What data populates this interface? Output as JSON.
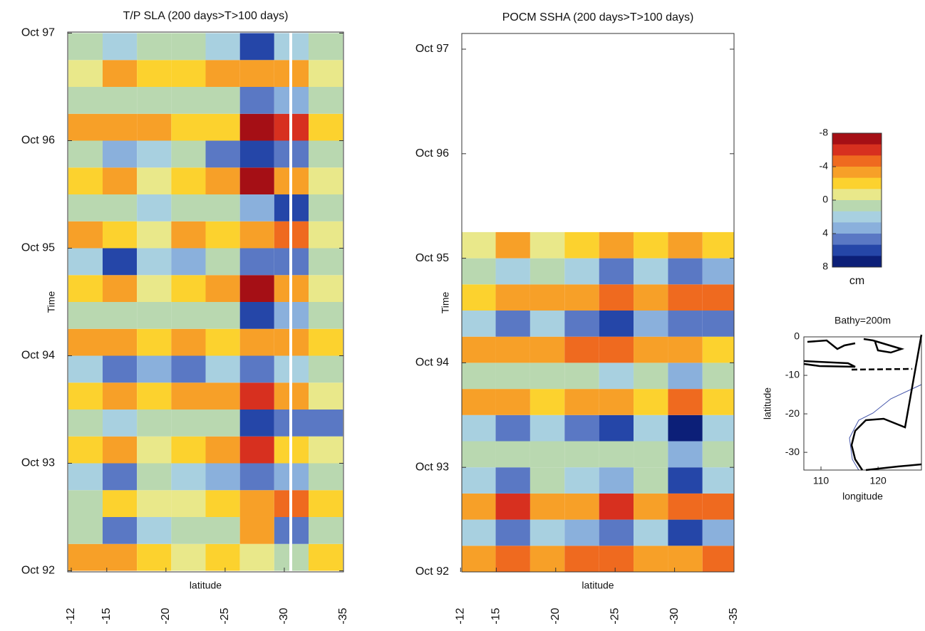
{
  "chart_data": [
    {
      "type": "heatmap",
      "title": "T/P SLA (200 days>T>100 days)",
      "xlabel": "latitude",
      "ylabel": "Time",
      "xlim": [
        -11.7,
        -35
      ],
      "xticks": [
        -12,
        -15,
        -20,
        -25,
        -30,
        -35
      ],
      "ylim": [
        1992.74,
        1997.76
      ],
      "yticks": [
        {
          "value": 1992.75,
          "label": "Oct 92"
        },
        {
          "value": 1993.75,
          "label": "Oct 93"
        },
        {
          "value": 1994.75,
          "label": "Oct 94"
        },
        {
          "value": 1995.75,
          "label": "Oct 95"
        },
        {
          "value": 1996.75,
          "label": "Oct 96"
        },
        {
          "value": 1997.75,
          "label": "Oct 97"
        }
      ],
      "x": [
        -13.2,
        -16.1,
        -19.0,
        -21.9,
        -24.8,
        -27.7,
        -30.6,
        -33.5
      ],
      "y": [
        1992.875,
        1993.125,
        1993.375,
        1993.625,
        1993.875,
        1994.125,
        1994.375,
        1994.625,
        1994.875,
        1995.125,
        1995.375,
        1995.625,
        1995.875,
        1996.125,
        1996.375,
        1996.625,
        1996.875,
        1997.125,
        1997.375,
        1997.625
      ],
      "values": [
        [
          -3,
          -4,
          -2,
          -1,
          -2,
          -1,
          1,
          -2
        ],
        [
          1,
          4,
          2,
          1,
          1,
          -3,
          5,
          1
        ],
        [
          0,
          -2,
          -1,
          -1,
          -2,
          -4,
          -5,
          -2
        ],
        [
          2,
          4,
          1,
          2,
          3,
          5,
          3,
          0
        ],
        [
          -2,
          -3,
          -1,
          -2,
          -3,
          -6,
          -2,
          -1
        ],
        [
          1,
          2,
          1,
          1,
          1,
          6,
          4,
          5
        ],
        [
          -2,
          -3,
          -2,
          -4,
          -3,
          -6,
          -3,
          -1
        ],
        [
          2,
          4,
          3,
          5,
          2,
          5,
          2,
          1
        ],
        [
          -3,
          -3,
          -2,
          -4,
          -2,
          -4,
          -3,
          -2
        ],
        [
          0,
          1,
          0,
          1,
          1,
          6,
          3,
          1
        ],
        [
          -2,
          -4,
          -1,
          -2,
          -4,
          -7,
          -3,
          -1
        ],
        [
          2,
          6,
          2,
          3,
          1,
          4,
          5,
          1
        ],
        [
          -3,
          -2,
          -1,
          -4,
          -2,
          -3,
          -5,
          -1
        ],
        [
          0,
          1,
          2,
          1,
          1,
          3,
          6,
          0
        ],
        [
          -2,
          -3,
          -1,
          -2,
          -3,
          -7,
          -4,
          -1
        ],
        [
          1,
          3,
          2,
          1,
          4,
          6,
          5,
          1
        ],
        [
          -3,
          -4,
          -3,
          -2,
          -2,
          -8,
          -6,
          -2
        ],
        [
          0,
          1,
          0,
          1,
          1,
          5,
          3,
          1
        ],
        [
          -1,
          -3,
          -2,
          -2,
          -3,
          -4,
          -4,
          -1
        ],
        [
          1,
          2,
          0,
          1,
          2,
          6,
          2,
          0
        ]
      ]
    },
    {
      "type": "heatmap",
      "title": "POCM SSHA (200 days>T>100 days)",
      "xlabel": "latitude",
      "ylabel": "Time",
      "xlim": [
        -12.1,
        -35
      ],
      "xticks": [
        -12,
        -15,
        -20,
        -25,
        -30,
        -35
      ],
      "ylim": [
        1992.75,
        1997.9
      ],
      "yticks": [
        {
          "value": 1992.75,
          "label": "Oct 92"
        },
        {
          "value": 1993.75,
          "label": "Oct 93"
        },
        {
          "value": 1994.75,
          "label": "Oct 94"
        },
        {
          "value": 1995.75,
          "label": "Oct 95"
        },
        {
          "value": 1996.75,
          "label": "Oct 96"
        },
        {
          "value": 1997.75,
          "label": "Oct 97"
        }
      ],
      "x": [
        -13.5,
        -16.4,
        -19.3,
        -22.2,
        -25.1,
        -28.0,
        -30.9,
        -33.8
      ],
      "y": [
        1992.875,
        1993.125,
        1993.375,
        1993.625,
        1993.875,
        1994.125,
        1994.375,
        1994.625,
        1994.875,
        1995.125,
        1995.375,
        1995.625,
        1995.875
      ],
      "values": [
        [
          -4,
          -5,
          -4,
          -5,
          -5,
          -4,
          -4,
          -5
        ],
        [
          2,
          4,
          2,
          3,
          5,
          2,
          6,
          3
        ],
        [
          -3,
          -6,
          -3,
          -4,
          -6,
          -3,
          -5,
          -5
        ],
        [
          2,
          4,
          1,
          2,
          3,
          1,
          6,
          2
        ],
        [
          1,
          1,
          0,
          1,
          1,
          0,
          3,
          1
        ],
        [
          2,
          5,
          2,
          4,
          6,
          2,
          7,
          2
        ],
        [
          -3,
          -4,
          -2,
          -3,
          -4,
          -2,
          -5,
          -2
        ],
        [
          0,
          1,
          1,
          1,
          2,
          1,
          3,
          1
        ],
        [
          -3,
          -4,
          -3,
          -5,
          -5,
          -3,
          -4,
          -2
        ],
        [
          2,
          4,
          2,
          5,
          6,
          3,
          4,
          5
        ],
        [
          -2,
          -4,
          -3,
          -4,
          -5,
          -3,
          -5,
          -5
        ],
        [
          1,
          2,
          1,
          2,
          4,
          2,
          5,
          3
        ],
        [
          -1,
          -3,
          -1,
          -2,
          -4,
          -2,
          -3,
          -2
        ]
      ]
    },
    {
      "type": "colorbar",
      "label": "cm",
      "clim": [
        -8,
        8
      ],
      "ticks": [
        -8,
        -4,
        0,
        4,
        8
      ],
      "colors": [
        "#a50f15",
        "#d7301f",
        "#ef6a1f",
        "#f7a028",
        "#fcd22e",
        "#e9e88a",
        "#b9d8b0",
        "#a8d0e0",
        "#8ab0dc",
        "#5a78c4",
        "#2546a8",
        "#0c1f78"
      ]
    },
    {
      "type": "map",
      "title": "Bathy=200m",
      "xlabel": "longitude",
      "ylabel": "latitude",
      "xlim": [
        107,
        127.6
      ],
      "xticks": [
        110,
        120
      ],
      "ylim": [
        -34.6,
        0
      ],
      "yticks": [
        0,
        -10,
        -20,
        -30
      ]
    }
  ]
}
